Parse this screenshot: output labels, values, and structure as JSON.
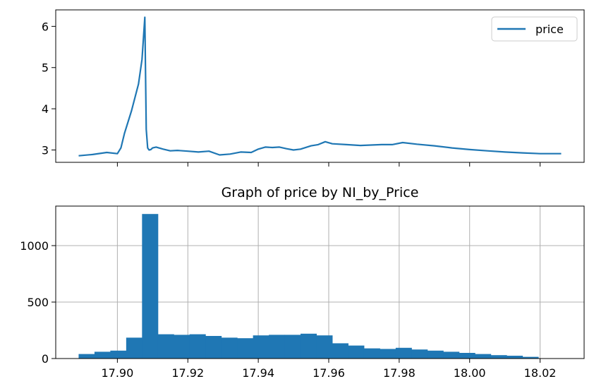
{
  "charts": [
    {
      "chart_data": {
        "type": "line",
        "title": "",
        "xlabel": "",
        "ylabel": "",
        "xlim": [
          17.8825,
          18.0325
        ],
        "ylim": [
          2.7,
          6.4
        ],
        "yticks": [
          3,
          4,
          5,
          6
        ],
        "xticks": [
          17.9,
          17.92,
          17.94,
          17.96,
          17.98,
          18.0,
          18.02
        ],
        "show_xtick_labels": false,
        "grid": false,
        "legend_position": "top-right",
        "color": "#1f77b4",
        "series": [
          {
            "name": "price",
            "x": [
              17.889,
              17.893,
              17.897,
              17.9,
              17.901,
              17.902,
              17.904,
              17.906,
              17.907,
              17.9078,
              17.9082,
              17.9086,
              17.909,
              17.9095,
              17.91,
              17.911,
              17.913,
              17.915,
              17.917,
              17.92,
              17.923,
              17.926,
              17.929,
              17.932,
              17.935,
              17.938,
              17.94,
              17.942,
              17.944,
              17.946,
              17.948,
              17.95,
              17.952,
              17.955,
              17.957,
              17.959,
              17.961,
              17.965,
              17.969,
              17.972,
              17.975,
              17.978,
              17.981,
              17.985,
              17.99,
              17.995,
              18.0,
              18.005,
              18.01,
              18.015,
              18.02,
              18.026
            ],
            "y": [
              2.86,
              2.89,
              2.94,
              2.91,
              3.05,
              3.4,
              3.95,
              4.6,
              5.2,
              6.22,
              3.5,
              3.05,
              3.0,
              3.01,
              3.05,
              3.07,
              3.02,
              2.98,
              2.99,
              2.97,
              2.95,
              2.97,
              2.88,
              2.9,
              2.95,
              2.94,
              3.02,
              3.07,
              3.06,
              3.07,
              3.03,
              3.0,
              3.02,
              3.1,
              3.13,
              3.2,
              3.15,
              3.13,
              3.11,
              3.12,
              3.13,
              3.13,
              3.18,
              3.14,
              3.1,
              3.05,
              3.01,
              2.98,
              2.95,
              2.93,
              2.91,
              2.91
            ]
          }
        ]
      }
    },
    {
      "chart_data": {
        "type": "bar",
        "title": "Graph of price by NI_by_Price",
        "xlabel": "",
        "ylabel": "",
        "xlim": [
          17.8825,
          18.0325
        ],
        "ylim": [
          0,
          1350
        ],
        "yticks": [
          0,
          500,
          1000
        ],
        "xticks": [
          17.9,
          17.92,
          17.94,
          17.96,
          17.98,
          18.0,
          18.02
        ],
        "xtick_labels": [
          "17.90",
          "17.92",
          "17.94",
          "17.96",
          "17.98",
          "18.00",
          "18.02"
        ],
        "grid": true,
        "color": "#1f77b4",
        "bin_start": 17.889,
        "bin_width": 0.0045,
        "values": [
          40,
          60,
          70,
          185,
          1280,
          215,
          210,
          215,
          200,
          185,
          180,
          205,
          210,
          210,
          220,
          205,
          135,
          115,
          90,
          85,
          95,
          80,
          70,
          60,
          50,
          40,
          30,
          25,
          15,
          2
        ]
      }
    }
  ]
}
